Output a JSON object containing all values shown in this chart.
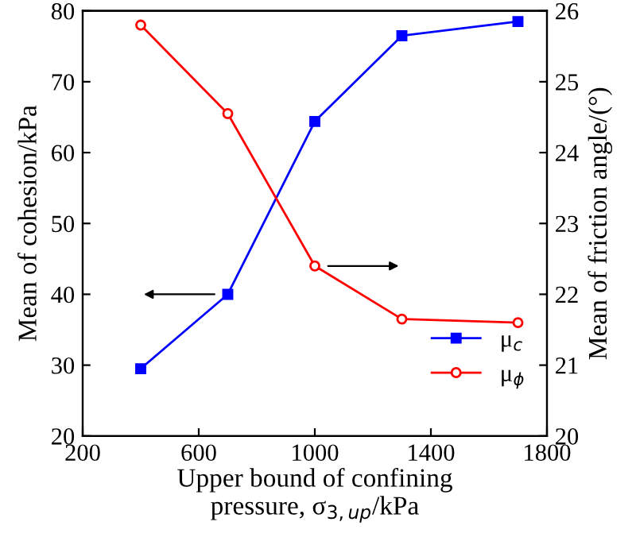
{
  "chart_data": {
    "type": "line",
    "xlabel": "Upper bound of confining\npressure, σ$_{3,up}$/kPa",
    "ylabel": "Mean of cohesion/kPa",
    "y2label": "Mean of friction angle/(°)",
    "xlim": [
      200,
      1800
    ],
    "xticks": [
      200,
      600,
      1000,
      1400,
      1800
    ],
    "ylim": [
      20,
      80
    ],
    "yticks": [
      20,
      30,
      40,
      50,
      60,
      70,
      80
    ],
    "y2lim": [
      20,
      26
    ],
    "y2ticks": [
      20,
      21,
      22,
      23,
      24,
      25,
      26
    ],
    "grid": false,
    "legend": "bottom right",
    "series": [
      {
        "name": "μ$_{c}$",
        "color": "#0000ff",
        "marker": "square",
        "x": [
          400,
          700,
          1000,
          1300,
          1700
        ],
        "values": [
          29.5,
          40,
          64.4,
          76.5,
          78.5
        ]
      },
      {
        "name": "μ$_{ϕ}$",
        "color": "#ff0000",
        "marker": "circle",
        "axis": "y2",
        "x": [
          400,
          700,
          1000,
          1300,
          1700
        ],
        "values": [
          25.8,
          24.55,
          22.4,
          21.65,
          21.6
        ]
      }
    ]
  }
}
